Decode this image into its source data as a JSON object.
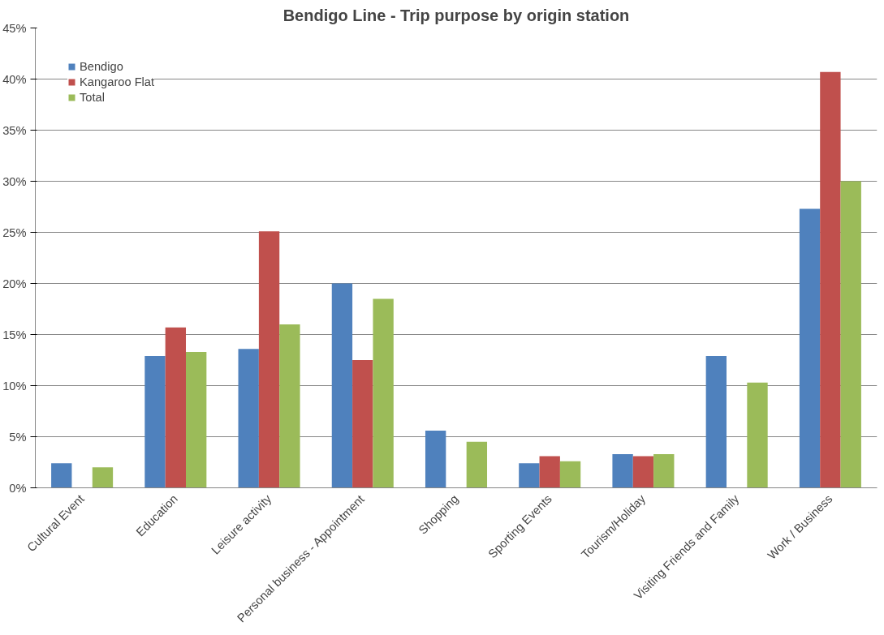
{
  "chart_data": {
    "type": "bar",
    "title": "Bendigo Line - Trip purpose by origin station",
    "categories": [
      "Cultural Event",
      "Education",
      "Leisure activity",
      "Personal business - Appointment",
      "Shopping",
      "Sporting Events",
      "Tourism/Holiday",
      "Visiting Friends and Family",
      "Work / Business"
    ],
    "series": [
      {
        "name": "Bendigo",
        "color": "#4f81bd",
        "values": [
          2.4,
          12.9,
          13.6,
          20.0,
          5.6,
          2.4,
          3.3,
          12.9,
          27.3
        ]
      },
      {
        "name": "Kangaroo Flat",
        "color": "#c0504d",
        "values": [
          0,
          15.7,
          25.1,
          12.5,
          0,
          3.1,
          3.1,
          0,
          40.7
        ]
      },
      {
        "name": "Total",
        "color": "#9bbb59",
        "values": [
          2.0,
          13.3,
          16.0,
          18.5,
          4.5,
          2.6,
          3.3,
          10.3,
          30.0
        ]
      }
    ],
    "ylim": [
      0,
      45
    ],
    "yticks": [
      {
        "value": 0,
        "label": "0%"
      },
      {
        "value": 5,
        "label": "5%"
      },
      {
        "value": 10,
        "label": "10%"
      },
      {
        "value": 15,
        "label": "15%"
      },
      {
        "value": 20,
        "label": "20%"
      },
      {
        "value": 25,
        "label": "25%"
      },
      {
        "value": 30,
        "label": "30%"
      },
      {
        "value": 35,
        "label": "35%"
      },
      {
        "value": 40,
        "label": "40%"
      },
      {
        "value": 45,
        "label": "45%"
      }
    ],
    "grid": "y",
    "legend": "top left"
  }
}
